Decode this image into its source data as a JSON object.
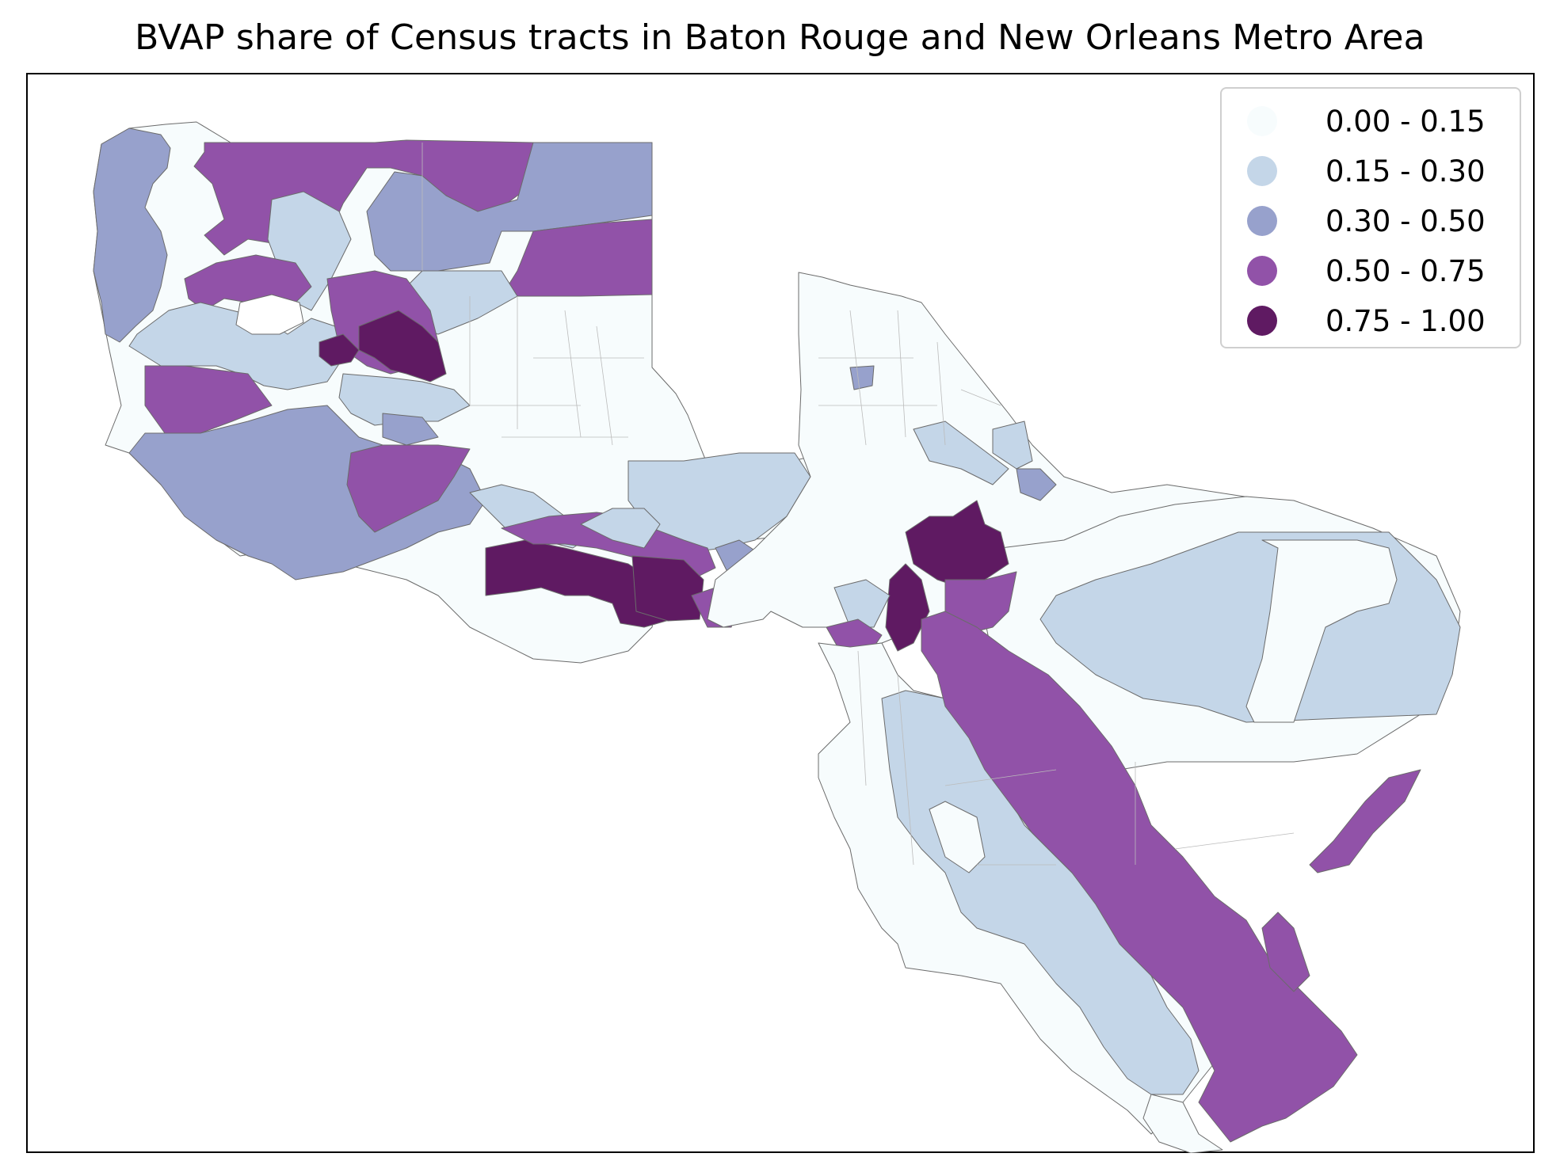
{
  "title": "BVAP share of Census tracts in Baton Rouge and New Orleans Metro Area",
  "legend": {
    "items": [
      {
        "label": "0.00 - 0.15",
        "color": "#f7fcfd"
      },
      {
        "label": "0.15 - 0.30",
        "color": "#c4d6e8"
      },
      {
        "label": "0.30 - 0.50",
        "color": "#97a1cc"
      },
      {
        "label": "0.50 - 0.75",
        "color": "#9152a8"
      },
      {
        "label": "0.75 - 1.00",
        "color": "#5f1a62"
      }
    ]
  },
  "map": {
    "boundary_color": "#555555",
    "tract_line_color": "#bbbbbb"
  }
}
